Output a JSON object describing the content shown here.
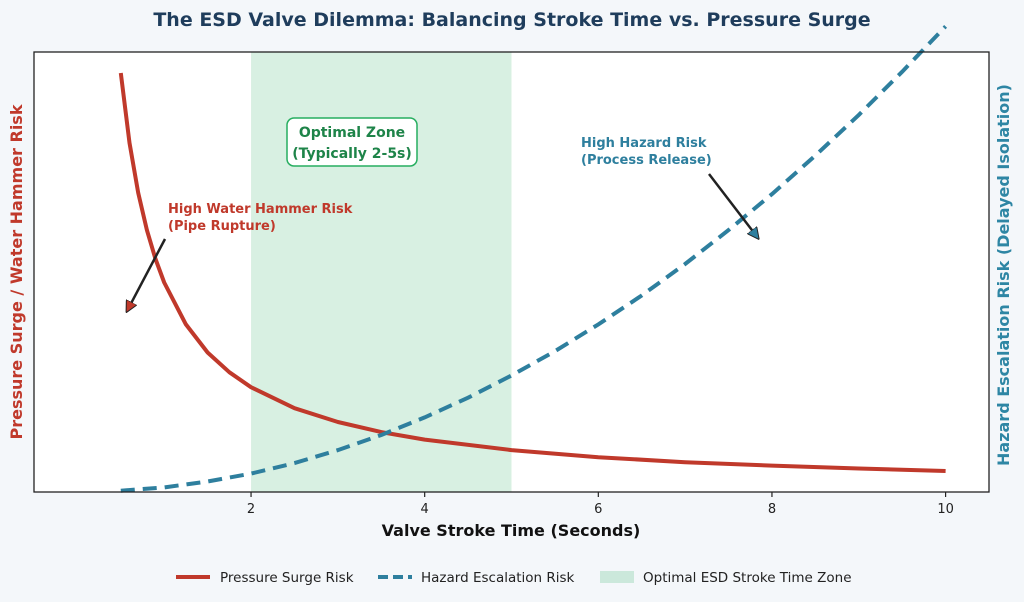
{
  "chart_data": {
    "type": "line",
    "title": "The ESD Valve Dilemma: Balancing Stroke Time vs. Pressure Surge",
    "xlabel": "Valve Stroke Time (Seconds)",
    "ylabel_left": "Pressure Surge / Water Hammer Risk",
    "ylabel_right": "Hazard Escalation Risk (Delayed Isolation)",
    "xlim": [
      -0.5,
      10.5
    ],
    "x_ticks": [
      "2",
      "4",
      "6",
      "8",
      "10"
    ],
    "ylim": [
      0,
      10.5
    ],
    "series": [
      {
        "name": "Pressure Surge Risk",
        "style": "solid",
        "color": "#c0392b",
        "x": [
          0.5,
          0.6,
          0.7,
          0.8,
          0.9,
          1.0,
          1.25,
          1.5,
          1.75,
          2.0,
          2.5,
          3.0,
          3.5,
          4.0,
          5.0,
          6.0,
          7.0,
          8.0,
          9.0,
          10.0
        ],
        "y": [
          10.0,
          8.33,
          7.14,
          6.25,
          5.56,
          5.0,
          4.0,
          3.33,
          2.86,
          2.5,
          2.0,
          1.67,
          1.43,
          1.25,
          1.0,
          0.83,
          0.71,
          0.63,
          0.56,
          0.5
        ]
      },
      {
        "name": "Hazard Escalation Risk",
        "style": "dashed",
        "color": "#2e7f9e",
        "x": [
          0.5,
          1.0,
          1.5,
          2.0,
          2.5,
          3.0,
          3.5,
          4.0,
          4.5,
          5.0,
          5.5,
          6.0,
          6.5,
          7.0,
          7.5,
          8.0,
          8.5,
          9.0,
          9.5,
          10.0
        ],
        "y": [
          0.03,
          0.11,
          0.25,
          0.44,
          0.69,
          1.0,
          1.36,
          1.78,
          2.25,
          2.78,
          3.36,
          4.0,
          4.69,
          5.44,
          6.25,
          7.11,
          8.03,
          9.0,
          10.03,
          11.11
        ]
      }
    ],
    "shaded_region": {
      "name": "Optimal ESD Stroke Time Zone",
      "x_range": [
        2,
        5
      ],
      "color": "#27ae60"
    },
    "annotations": {
      "optimal": {
        "line1": "Optimal Zone",
        "line2": "(Typically 2-5s)"
      },
      "red": {
        "line1": "High Water Hammer Risk",
        "line2": "(Pipe Rupture)",
        "point_x": 1.0
      },
      "blue": {
        "line1": "High Hazard Risk",
        "line2": "(Process Release)",
        "point_x": 8.0
      }
    },
    "legend": {
      "position": "bottom",
      "entries": [
        "Pressure Surge Risk",
        "Hazard Escalation Risk",
        "Optimal ESD Stroke Time Zone"
      ]
    }
  }
}
